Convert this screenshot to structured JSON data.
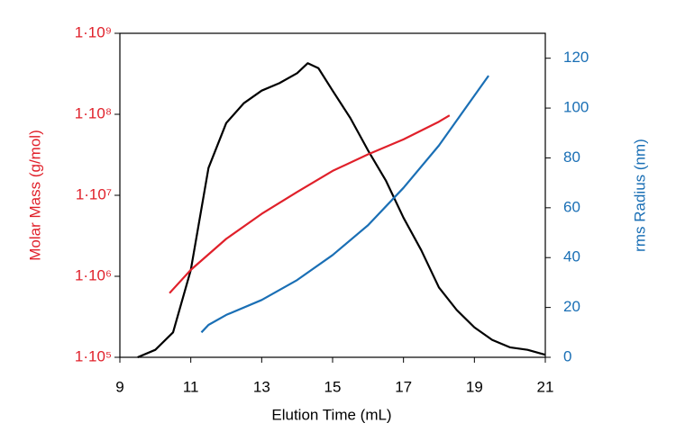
{
  "chart_data": {
    "type": "line",
    "xlabel": "Elution Time (mL)",
    "ylabel": "Molar Mass (g/mol)",
    "y2label": "rms Radius (nm)",
    "xlim": [
      9,
      21
    ],
    "xticks": [
      9,
      11,
      13,
      15,
      17,
      19,
      21
    ],
    "ylim": [
      100000,
      1000000000
    ],
    "y_scale": "log",
    "yticks": [
      {
        "value": 100000,
        "label": "1·10⁵"
      },
      {
        "value": 1000000,
        "label": "1·10⁶"
      },
      {
        "value": 10000000,
        "label": "1·10⁷"
      },
      {
        "value": 100000000,
        "label": "1·10⁸"
      },
      {
        "value": 1000000000,
        "label": "1·10⁹"
      }
    ],
    "ylabel_color": "#e0202a",
    "y2lim": [
      0,
      130
    ],
    "y2ticks": [
      0,
      20,
      40,
      60,
      80,
      100,
      120
    ],
    "y2label_color": "#1a6fb5",
    "series": [
      {
        "color": "#000000",
        "axis": "y2",
        "x": [
          9.5,
          10,
          10.5,
          11,
          11.5,
          12,
          12.5,
          13,
          13.5,
          14,
          14.3,
          14.6,
          15,
          15.5,
          16,
          16.5,
          17,
          17.5,
          18,
          18.5,
          19,
          19.5,
          20,
          20.5,
          21
        ],
        "values": [
          0,
          3,
          10,
          35,
          76,
          94,
          102,
          107,
          110,
          114,
          118,
          116,
          107,
          96,
          83,
          71,
          56,
          43,
          28,
          19,
          12,
          7,
          4,
          3,
          1
        ]
      },
      {
        "color": "#e0202a",
        "axis": "y",
        "x": [
          10.4,
          11,
          12,
          13,
          14,
          15,
          16,
          17,
          18,
          18.3
        ],
        "values": [
          620000,
          1200000,
          2900000,
          5900000,
          11000000,
          20000000,
          32000000,
          49000000,
          81000000,
          97000000
        ]
      },
      {
        "color": "#1a6fb5",
        "axis": "y2",
        "x": [
          11.3,
          11.5,
          12,
          13,
          14,
          15,
          16,
          17,
          18,
          19,
          19.4
        ],
        "values": [
          10,
          13,
          17,
          23,
          31,
          41,
          53,
          68,
          85,
          105,
          113
        ]
      }
    ]
  }
}
